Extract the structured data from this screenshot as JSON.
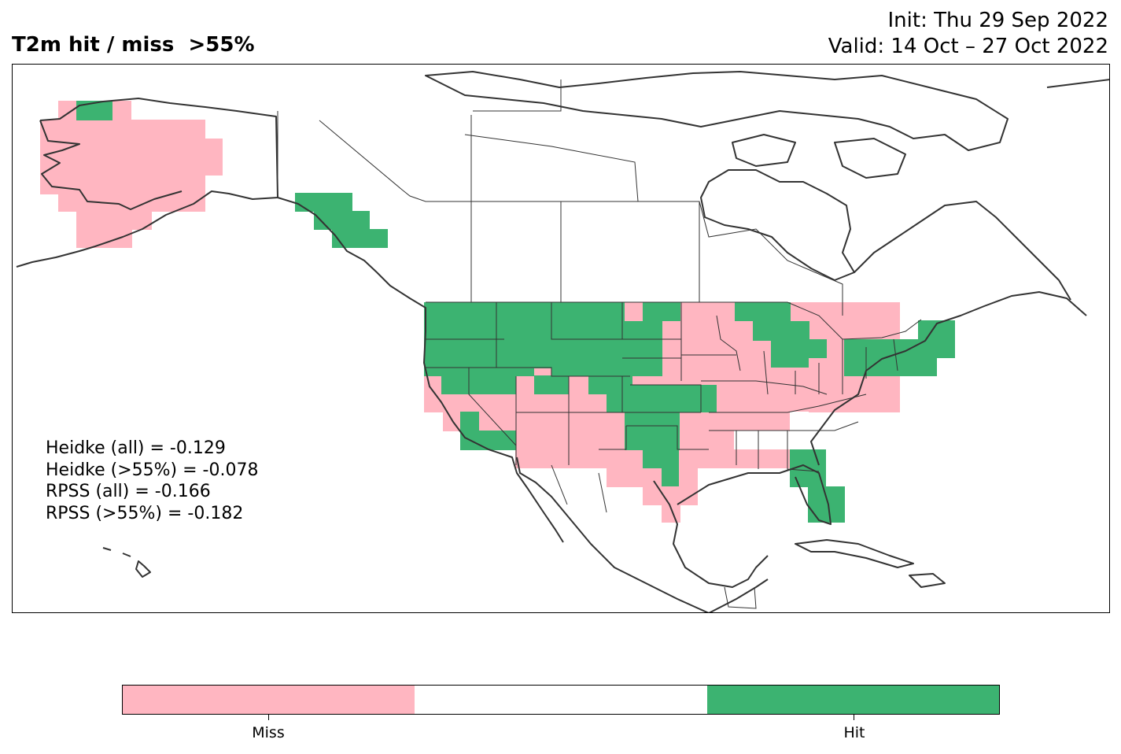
{
  "title": {
    "left": "T2m hit / miss  >55%",
    "init": "Init: Thu 29 Sep 2022",
    "valid": "Valid: 14 Oct – 27 Oct 2022"
  },
  "scores": [
    "Heidke (all) = -0.129",
    "Heidke (>55%) = -0.078",
    "RPSS (all) = -0.166",
    "RPSS (>55%) = -0.182"
  ],
  "legend": {
    "categories": [
      {
        "label": "Miss",
        "color": "#ffb6c1"
      },
      {
        "label": "",
        "color": "#ffffff"
      },
      {
        "label": "Hit",
        "color": "#3cb371"
      }
    ]
  },
  "colors": {
    "miss": "#ffb6c1",
    "neutral": "#ffffff",
    "hit": "#3cb371",
    "coastline": "#333333"
  }
}
